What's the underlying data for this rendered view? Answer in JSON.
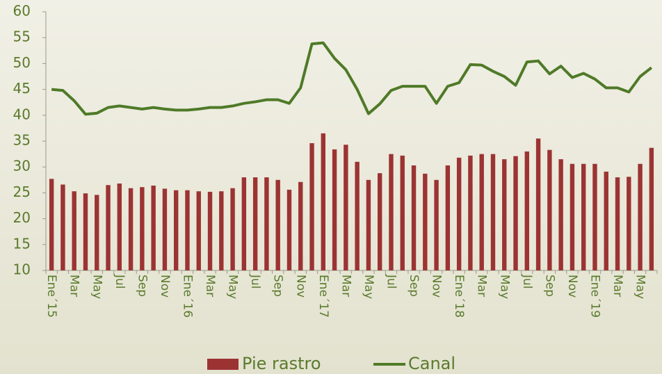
{
  "chart_data": {
    "type": "bar_line",
    "categories": [
      "Ene´15",
      null,
      "Mar",
      null,
      "May",
      null,
      "Jul",
      null,
      "Sep",
      null,
      "Nov",
      null,
      "Ene´16",
      null,
      "Mar",
      null,
      "May",
      null,
      "Jul",
      null,
      "Sep",
      null,
      "Nov",
      null,
      "Ene´17",
      null,
      "Mar",
      null,
      "May",
      null,
      "Jul",
      null,
      "Sep",
      null,
      "Nov",
      null,
      "Ene´18",
      null,
      "Mar",
      null,
      "May",
      null,
      "Jul",
      null,
      "Sep",
      null,
      "Nov",
      null,
      "Ene´19",
      null,
      "Mar",
      null,
      "May",
      null
    ],
    "series": [
      {
        "name": "Pie rastro",
        "type": "bar",
        "color": "#9c3333",
        "values": [
          27.7,
          26.6,
          25.3,
          24.9,
          24.6,
          26.5,
          26.8,
          25.9,
          26.1,
          26.4,
          25.8,
          25.5,
          25.5,
          25.3,
          25.2,
          25.3,
          25.9,
          28.0,
          28.0,
          28.0,
          27.5,
          25.6,
          27.1,
          34.6,
          36.5,
          33.4,
          34.3,
          31.0,
          27.5,
          28.8,
          32.5,
          32.2,
          30.3,
          28.7,
          27.5,
          30.3,
          31.8,
          32.2,
          32.5,
          32.5,
          31.5,
          32.1,
          33.0,
          35.5,
          33.3,
          31.5,
          30.6,
          30.6,
          30.6,
          29.1,
          28.0,
          28.1,
          30.6,
          33.7
        ]
      },
      {
        "name": "Canal",
        "type": "line",
        "color": "#4f7a28",
        "values": [
          45.0,
          44.8,
          42.8,
          40.2,
          40.4,
          41.5,
          41.8,
          41.5,
          41.2,
          41.5,
          41.2,
          41.0,
          41.0,
          41.2,
          41.5,
          41.5,
          41.8,
          42.3,
          42.6,
          43.0,
          43.0,
          42.3,
          45.3,
          53.8,
          54.0,
          51.0,
          48.8,
          45.0,
          40.3,
          42.2,
          44.8,
          45.6,
          45.6,
          45.6,
          42.3,
          45.6,
          46.3,
          49.8,
          49.7,
          48.5,
          47.5,
          45.8,
          50.3,
          50.5,
          48.0,
          49.5,
          47.3,
          48.1,
          47.0,
          45.3,
          45.3,
          44.5,
          47.5,
          49.2
        ]
      }
    ],
    "ylim": [
      10,
      60
    ],
    "yticks": [
      10,
      15,
      20,
      25,
      30,
      35,
      40,
      45,
      50,
      55,
      60
    ],
    "legend": "bottom"
  }
}
